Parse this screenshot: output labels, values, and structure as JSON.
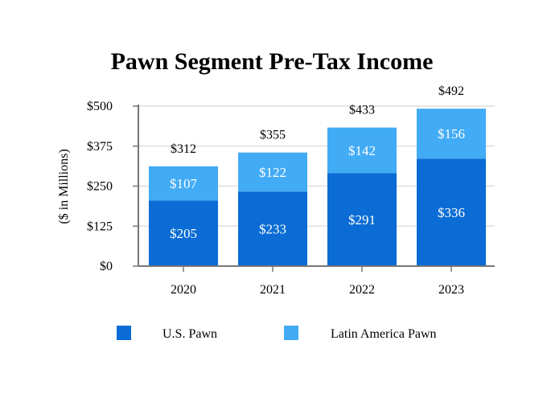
{
  "chart_data": {
    "type": "bar",
    "stacked": true,
    "title": "Pawn Segment Pre-Tax Income",
    "xlabel": "",
    "ylabel": "($ in Millions)",
    "categories": [
      "2020",
      "2021",
      "2022",
      "2023"
    ],
    "series": [
      {
        "name": "U.S. Pawn",
        "values": [
          205,
          233,
          291,
          336
        ],
        "labels": [
          "$205",
          "$233",
          "$291",
          "$336"
        ],
        "color": "#0a6cd4"
      },
      {
        "name": "Latin America Pawn",
        "values": [
          107,
          122,
          142,
          156
        ],
        "labels": [
          "$107",
          "$122",
          "$142",
          "$156"
        ],
        "color": "#42abf5"
      }
    ],
    "totals": [
      312,
      355,
      433,
      492
    ],
    "total_labels": [
      "$312",
      "$355",
      "$433",
      "$492"
    ],
    "ylim": [
      0,
      500
    ],
    "yticks": [
      0,
      125,
      250,
      375,
      500
    ],
    "ytick_labels": [
      "$0",
      "$125",
      "$250",
      "$375",
      "$500"
    ],
    "grid": true,
    "legend_position": "bottom"
  }
}
